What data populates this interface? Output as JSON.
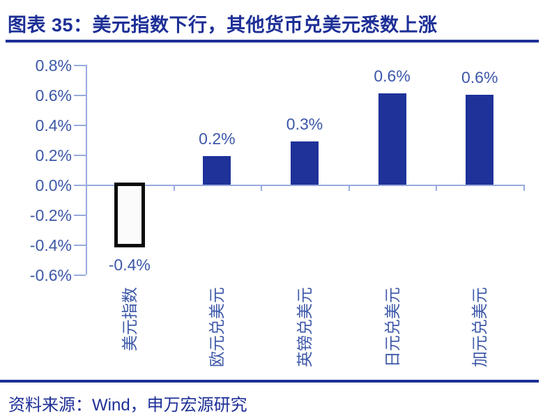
{
  "header": {
    "title": "图表 35：美元指数下行，其他货币兑美元悉数上涨"
  },
  "footer": {
    "source": "资料来源：Wind，申万宏源研究"
  },
  "colors": {
    "accent": "#1d2f96",
    "bar_fill": "#1e3299",
    "negative_bar_border": "#0b0b0b",
    "negative_bar_fill": "#fbfbfb",
    "axis_line": "#97aadd",
    "tick_label": "#3c57a8"
  },
  "chart_data": {
    "type": "bar",
    "title": "美元指数下行，其他货币兑美元悉数上涨",
    "categories": [
      "美元指数",
      "欧元兑美元",
      "英镑兑美元",
      "日元兑美元",
      "加元兑美元"
    ],
    "values": [
      -0.4,
      0.19,
      0.29,
      0.61,
      0.6
    ],
    "data_labels": [
      "-0.4%",
      "0.2%",
      "0.3%",
      "0.6%",
      "0.6%"
    ],
    "y_tick_labels": [
      "0.8%",
      "0.6%",
      "0.4%",
      "0.2%",
      "0.0%",
      "-0.2%",
      "-0.4%",
      "-0.6%"
    ],
    "ylim": [
      -0.6,
      0.8
    ],
    "unit": "%",
    "grid": false,
    "legend": "none",
    "bar_styles": [
      "outlined-white",
      "solid",
      "solid",
      "solid",
      "solid"
    ]
  }
}
